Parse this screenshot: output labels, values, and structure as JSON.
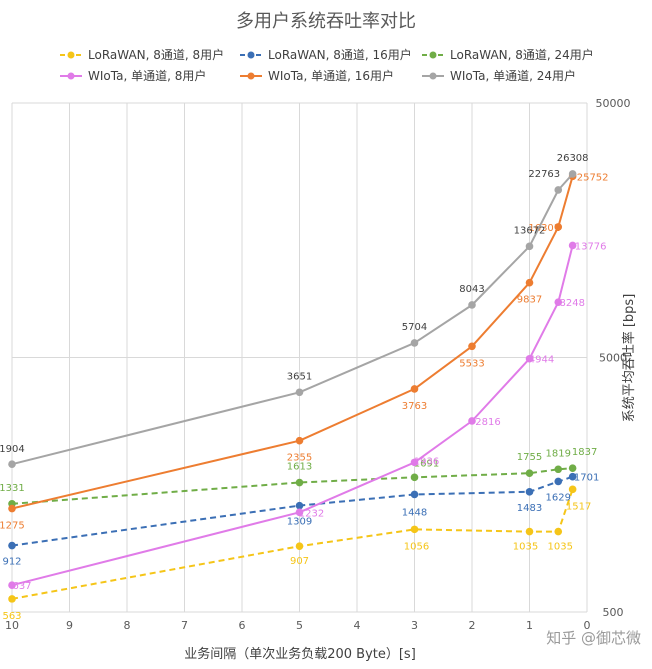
{
  "chart_data": {
    "type": "line",
    "title": "多用户系统吞吐率对比",
    "xlabel": "业务间隔（单次业务负载200 Byte）[s]",
    "ylabel": "系统平均吞吐率 [bps]",
    "xlim": [
      10,
      0
    ],
    "x_reversed": true,
    "ylim": [
      500,
      50000
    ],
    "y_scale": "log",
    "x_ticks": [
      10,
      9,
      8,
      7,
      6,
      5,
      4,
      3,
      2,
      1,
      0
    ],
    "y_ticks": [
      500,
      5000,
      50000
    ],
    "y_axis_side": "right",
    "grid": true,
    "legend_position": "top",
    "series": [
      {
        "name": "LoRaWAN, 8通道, 8用户",
        "color": "#f5c518",
        "dash": true,
        "x": [
          10,
          5,
          3,
          1,
          0.5,
          0.25
        ],
        "y": [
          563,
          907,
          1056,
          1035,
          1035,
          1517
        ],
        "labels": [
          "563",
          "907",
          "1056",
          "1035",
          "1035",
          "1517"
        ]
      },
      {
        "name": "LoRaWAN, 8通道, 16用户",
        "color": "#3b6fb5",
        "dash": true,
        "x": [
          10,
          5,
          3,
          1,
          0.5,
          0.25
        ],
        "y": [
          912,
          1309,
          1448,
          1483,
          1629,
          1701
        ],
        "labels": [
          "912",
          "1309",
          "1448",
          "1483",
          "1629",
          "1701"
        ]
      },
      {
        "name": "LoRaWAN, 8通道, 24用户",
        "color": "#70ad47",
        "dash": true,
        "x": [
          10,
          5,
          3,
          1,
          0.5,
          0.25
        ],
        "y": [
          1331,
          1613,
          1691,
          1755,
          1819,
          1837
        ],
        "labels": [
          "1331",
          "1613",
          "1691",
          "1755",
          "1819",
          "1837"
        ]
      },
      {
        "name": "WIoTa, 单通道, 8用户",
        "color": "#e07be8",
        "dash": false,
        "x": [
          10,
          5,
          3,
          2,
          1,
          0.5,
          0.25
        ],
        "y": [
          637,
          1232,
          1936,
          2816,
          4944,
          8248,
          13776
        ],
        "labels": [
          "637",
          "1232",
          "1936",
          "2816",
          "4944",
          "8248",
          "13776"
        ]
      },
      {
        "name": "WIoTa, 单通道, 16用户",
        "color": "#ed7d31",
        "dash": false,
        "x": [
          10,
          5,
          3,
          2,
          1,
          0.5,
          0.25
        ],
        "y": [
          1275,
          2355,
          3763,
          5533,
          9837,
          16301,
          25752
        ],
        "labels": [
          "1275",
          "2355",
          "3763",
          "5533",
          "9837",
          "16301",
          "25752"
        ]
      },
      {
        "name": "WIoTa, 单通道, 24用户",
        "color": "#a5a5a5",
        "dash": false,
        "x": [
          10,
          5,
          3,
          2,
          1,
          0.5,
          0.25
        ],
        "y": [
          1904,
          3651,
          5704,
          8043,
          13672,
          22763,
          26308
        ],
        "labels": [
          "1904",
          "3651",
          "5704",
          "8043",
          "13672",
          "22763",
          "26308"
        ]
      }
    ]
  },
  "watermark": "知乎 @御芯微"
}
